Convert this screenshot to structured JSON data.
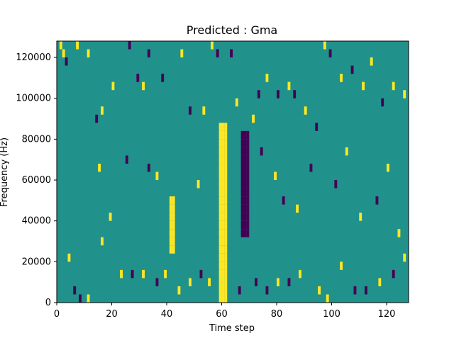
{
  "chart_data": {
    "type": "heatmap",
    "title": "Predicted : Gma",
    "xlabel": "Time step",
    "ylabel": "Frequency (Hz)",
    "xlim": [
      0,
      128
    ],
    "ylim": [
      0,
      128000
    ],
    "x_ticks": [
      0,
      20,
      40,
      60,
      80,
      100,
      120
    ],
    "y_ticks": [
      0,
      20000,
      40000,
      60000,
      80000,
      100000,
      120000
    ],
    "y_tick_labels": [
      "0",
      "20000",
      "40000",
      "60000",
      "80000",
      "100000",
      "120000"
    ],
    "grid": false,
    "colormap": "viridis",
    "value_levels": [
      0,
      1,
      2
    ],
    "colors": {
      "low": "#440154",
      "mid": "#21918c",
      "high": "#fde725"
    },
    "background_value": 1,
    "n_time_steps": 128,
    "n_frequency_bins": 32,
    "bin_height_hz": 4000,
    "dense_vertical_bands": [
      {
        "t_start": 59,
        "t_end": 62,
        "f_start": 0,
        "f_end": 88000,
        "value": 2
      },
      {
        "t_start": 41,
        "t_end": 43,
        "f_start": 24000,
        "f_end": 52000,
        "value": 2
      },
      {
        "t_start": 67,
        "t_end": 70,
        "f_start": 32000,
        "f_end": 84000,
        "value": 0
      }
    ],
    "sparse_cells": [
      {
        "t": 1,
        "f": 124000,
        "v": 2
      },
      {
        "t": 2,
        "f": 120000,
        "v": 2
      },
      {
        "t": 3,
        "f": 116000,
        "v": 0
      },
      {
        "t": 7,
        "f": 124000,
        "v": 2
      },
      {
        "t": 11,
        "f": 120000,
        "v": 2
      },
      {
        "t": 14,
        "f": 88000,
        "v": 0
      },
      {
        "t": 16,
        "f": 92000,
        "v": 2
      },
      {
        "t": 20,
        "f": 104000,
        "v": 2
      },
      {
        "t": 26,
        "f": 124000,
        "v": 0
      },
      {
        "t": 29,
        "f": 108000,
        "v": 0
      },
      {
        "t": 31,
        "f": 104000,
        "v": 2
      },
      {
        "t": 33,
        "f": 120000,
        "v": 0
      },
      {
        "t": 38,
        "f": 108000,
        "v": 0
      },
      {
        "t": 45,
        "f": 120000,
        "v": 2
      },
      {
        "t": 48,
        "f": 92000,
        "v": 0
      },
      {
        "t": 53,
        "f": 92000,
        "v": 2
      },
      {
        "t": 56,
        "f": 124000,
        "v": 2
      },
      {
        "t": 58,
        "f": 120000,
        "v": 0
      },
      {
        "t": 63,
        "f": 120000,
        "v": 0
      },
      {
        "t": 65,
        "f": 96000,
        "v": 2
      },
      {
        "t": 71,
        "f": 88000,
        "v": 2
      },
      {
        "t": 73,
        "f": 100000,
        "v": 0
      },
      {
        "t": 76,
        "f": 108000,
        "v": 2
      },
      {
        "t": 80,
        "f": 100000,
        "v": 0
      },
      {
        "t": 84,
        "f": 104000,
        "v": 2
      },
      {
        "t": 86,
        "f": 100000,
        "v": 0
      },
      {
        "t": 90,
        "f": 92000,
        "v": 2
      },
      {
        "t": 94,
        "f": 84000,
        "v": 0
      },
      {
        "t": 97,
        "f": 124000,
        "v": 2
      },
      {
        "t": 99,
        "f": 120000,
        "v": 0
      },
      {
        "t": 103,
        "f": 108000,
        "v": 2
      },
      {
        "t": 107,
        "f": 112000,
        "v": 0
      },
      {
        "t": 111,
        "f": 104000,
        "v": 2
      },
      {
        "t": 114,
        "f": 116000,
        "v": 2
      },
      {
        "t": 118,
        "f": 96000,
        "v": 0
      },
      {
        "t": 122,
        "f": 104000,
        "v": 2
      },
      {
        "t": 126,
        "f": 100000,
        "v": 2
      },
      {
        "t": 4,
        "f": 20000,
        "v": 2
      },
      {
        "t": 6,
        "f": 4000,
        "v": 0
      },
      {
        "t": 8,
        "f": 0,
        "v": 0
      },
      {
        "t": 11,
        "f": 0,
        "v": 2
      },
      {
        "t": 16,
        "f": 28000,
        "v": 2
      },
      {
        "t": 19,
        "f": 40000,
        "v": 2
      },
      {
        "t": 23,
        "f": 12000,
        "v": 2
      },
      {
        "t": 27,
        "f": 12000,
        "v": 0
      },
      {
        "t": 31,
        "f": 12000,
        "v": 2
      },
      {
        "t": 36,
        "f": 8000,
        "v": 0
      },
      {
        "t": 39,
        "f": 12000,
        "v": 2
      },
      {
        "t": 44,
        "f": 4000,
        "v": 2
      },
      {
        "t": 48,
        "f": 8000,
        "v": 2
      },
      {
        "t": 52,
        "f": 12000,
        "v": 0
      },
      {
        "t": 55,
        "f": 8000,
        "v": 2
      },
      {
        "t": 66,
        "f": 4000,
        "v": 0
      },
      {
        "t": 72,
        "f": 8000,
        "v": 0
      },
      {
        "t": 76,
        "f": 4000,
        "v": 0
      },
      {
        "t": 80,
        "f": 8000,
        "v": 2
      },
      {
        "t": 84,
        "f": 8000,
        "v": 0
      },
      {
        "t": 88,
        "f": 12000,
        "v": 2
      },
      {
        "t": 95,
        "f": 4000,
        "v": 2
      },
      {
        "t": 98,
        "f": 0,
        "v": 2
      },
      {
        "t": 103,
        "f": 16000,
        "v": 2
      },
      {
        "t": 108,
        "f": 4000,
        "v": 0
      },
      {
        "t": 112,
        "f": 4000,
        "v": 0
      },
      {
        "t": 117,
        "f": 8000,
        "v": 2
      },
      {
        "t": 122,
        "f": 12000,
        "v": 0
      },
      {
        "t": 126,
        "f": 20000,
        "v": 2
      },
      {
        "t": 15,
        "f": 64000,
        "v": 2
      },
      {
        "t": 25,
        "f": 68000,
        "v": 0
      },
      {
        "t": 33,
        "f": 64000,
        "v": 0
      },
      {
        "t": 36,
        "f": 60000,
        "v": 2
      },
      {
        "t": 51,
        "f": 56000,
        "v": 2
      },
      {
        "t": 74,
        "f": 72000,
        "v": 0
      },
      {
        "t": 79,
        "f": 60000,
        "v": 2
      },
      {
        "t": 82,
        "f": 48000,
        "v": 0
      },
      {
        "t": 87,
        "f": 44000,
        "v": 2
      },
      {
        "t": 92,
        "f": 64000,
        "v": 0
      },
      {
        "t": 101,
        "f": 56000,
        "v": 0
      },
      {
        "t": 105,
        "f": 72000,
        "v": 2
      },
      {
        "t": 110,
        "f": 40000,
        "v": 2
      },
      {
        "t": 116,
        "f": 48000,
        "v": 0
      },
      {
        "t": 120,
        "f": 64000,
        "v": 2
      },
      {
        "t": 124,
        "f": 32000,
        "v": 2
      }
    ]
  }
}
